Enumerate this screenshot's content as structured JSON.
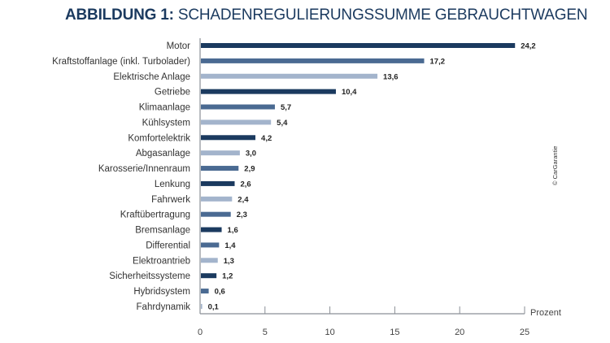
{
  "chart_data": {
    "type": "bar",
    "orientation": "horizontal",
    "title_bold": "ABBILDUNG 1:",
    "title": "SCHADENREGULIERUNGSSUMME GEBRAUCHTWAGEN",
    "xlabel": "Prozent",
    "ylabel": "",
    "xlim": [
      0,
      25
    ],
    "xticks": [
      0,
      5,
      10,
      15,
      20,
      25
    ],
    "grid": false,
    "categories": [
      "Motor",
      "Kraftstoffanlage (inkl. Turbolader)",
      "Elektrische Anlage",
      "Getriebe",
      "Klimaanlage",
      "Kühlsystem",
      "Komfortelektrik",
      "Abgasanlage",
      "Karosserie/Innenraum",
      "Lenkung",
      "Fahrwerk",
      "Kraftübertragung",
      "Bremsanlage",
      "Differential",
      "Elektroantrieb",
      "Sicherheitssysteme",
      "Hybridsystem",
      "Fahrdynamik"
    ],
    "values": [
      24.2,
      17.2,
      13.6,
      10.4,
      5.7,
      5.4,
      4.2,
      3.0,
      2.9,
      2.6,
      2.4,
      2.3,
      1.6,
      1.4,
      1.3,
      1.2,
      0.6,
      0.1
    ],
    "value_labels": [
      "24,2",
      "17,2",
      "13,6",
      "10,4",
      "5,7",
      "5,4",
      "4,2",
      "3,0",
      "2,9",
      "2,6",
      "2,4",
      "2,3",
      "1,6",
      "1,4",
      "1,3",
      "1,2",
      "0,6",
      "0,1"
    ],
    "bar_colors": [
      "#1b3a5f",
      "#4a6a92",
      "#a3b4cc",
      "#1b3a5f",
      "#4a6a92",
      "#a3b4cc",
      "#1b3a5f",
      "#a3b4cc",
      "#4a6a92",
      "#1b3a5f",
      "#a3b4cc",
      "#4a6a92",
      "#1b3a5f",
      "#4a6a92",
      "#a3b4cc",
      "#1b3a5f",
      "#4a6a92",
      "#a3b4cc"
    ]
  },
  "copyright": "© CarGarantie",
  "colors": {
    "title": "#1b3a5f",
    "axis": "#8a8f96"
  }
}
